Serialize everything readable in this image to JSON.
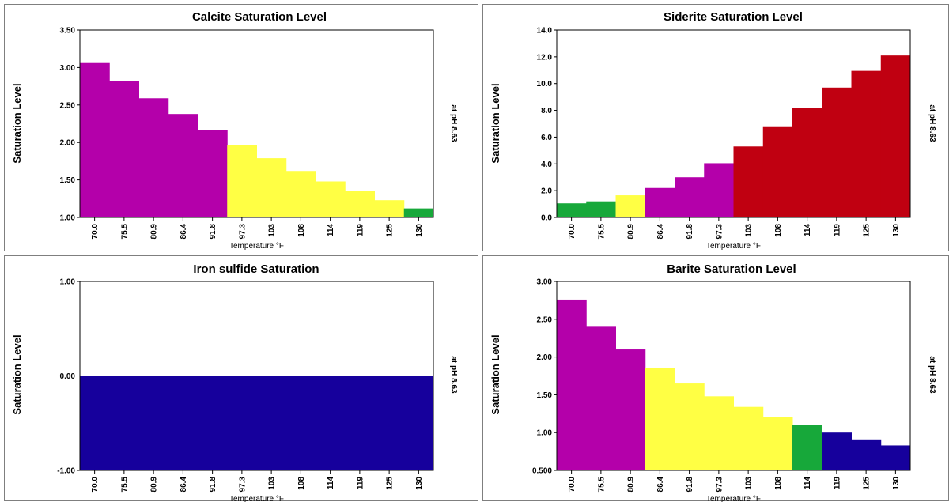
{
  "colors": {
    "magenta": "#b400aa",
    "yellow": "#ffff44",
    "green": "#17a83a",
    "red": "#c00011",
    "navy": "#16009c"
  },
  "chart_data": [
    {
      "type": "bar",
      "title": "Calcite Saturation Level",
      "ylabel": "Saturation Level",
      "xlabel": "Temperature °F",
      "side_label": "at pH   8.63",
      "ylim": [
        1.0,
        3.5
      ],
      "yticks": [
        "1.00",
        "1.50",
        "2.00",
        "2.50",
        "3.00",
        "3.50"
      ],
      "categories": [
        "70.0",
        "75.5",
        "80.9",
        "86.4",
        "91.8",
        "97.3",
        "103",
        "108",
        "114",
        "119",
        "125",
        "130"
      ],
      "values": [
        3.06,
        2.82,
        2.59,
        2.38,
        2.17,
        1.97,
        1.79,
        1.62,
        1.48,
        1.35,
        1.23,
        1.12
      ],
      "colors": [
        "magenta",
        "magenta",
        "magenta",
        "magenta",
        "magenta",
        "yellow",
        "yellow",
        "yellow",
        "yellow",
        "yellow",
        "yellow",
        "green"
      ]
    },
    {
      "type": "bar",
      "title": "Siderite Saturation Level",
      "ylabel": "Saturation Level",
      "xlabel": "Temperature °F",
      "side_label": "at pH   8.63",
      "ylim": [
        0.0,
        14.0
      ],
      "yticks": [
        "0.0",
        "2.0",
        "4.0",
        "6.0",
        "8.0",
        "10.0",
        "12.0",
        "14.0"
      ],
      "categories": [
        "70.0",
        "75.5",
        "80.9",
        "86.4",
        "91.8",
        "97.3",
        "103",
        "108",
        "114",
        "119",
        "125",
        "130"
      ],
      "values": [
        1.05,
        1.2,
        1.65,
        2.2,
        3.0,
        4.05,
        5.3,
        6.75,
        8.2,
        9.7,
        10.95,
        12.1
      ],
      "colors": [
        "green",
        "green",
        "yellow",
        "magenta",
        "magenta",
        "magenta",
        "red",
        "red",
        "red",
        "red",
        "red",
        "red"
      ]
    },
    {
      "type": "bar",
      "title": "Iron sulfide Saturation",
      "ylabel": "Saturation Level",
      "xlabel": "Temperature °F",
      "side_label": "at pH   8.63",
      "ylim": [
        -1.0,
        1.0
      ],
      "yticks": [
        "-1.00",
        "0.00",
        "1.00"
      ],
      "categories": [
        "70.0",
        "75.5",
        "80.9",
        "86.4",
        "91.8",
        "97.3",
        "103",
        "108",
        "114",
        "119",
        "125",
        "130"
      ],
      "values": [
        0,
        0,
        0,
        0,
        0,
        0,
        0,
        0,
        0,
        0,
        0,
        0
      ],
      "colors": [
        "navy",
        "navy",
        "navy",
        "navy",
        "navy",
        "navy",
        "navy",
        "navy",
        "navy",
        "navy",
        "navy",
        "navy"
      ],
      "fill_below_zero": true
    },
    {
      "type": "bar",
      "title": "Barite Saturation Level",
      "ylabel": "Saturation Level",
      "xlabel": "Temperature °F",
      "side_label": "at pH   8.63",
      "ylim": [
        0.5,
        3.0
      ],
      "yticks": [
        "0.500",
        "1.00",
        "1.50",
        "2.00",
        "2.50",
        "3.00"
      ],
      "categories": [
        "70.0",
        "75.5",
        "80.9",
        "86.4",
        "91.8",
        "97.3",
        "103",
        "108",
        "114",
        "119",
        "125",
        "130"
      ],
      "values": [
        2.76,
        2.4,
        2.1,
        1.86,
        1.65,
        1.48,
        1.34,
        1.21,
        1.1,
        1.0,
        0.91,
        0.83
      ],
      "colors": [
        "magenta",
        "magenta",
        "magenta",
        "yellow",
        "yellow",
        "yellow",
        "yellow",
        "yellow",
        "green",
        "navy",
        "navy",
        "navy"
      ]
    }
  ]
}
